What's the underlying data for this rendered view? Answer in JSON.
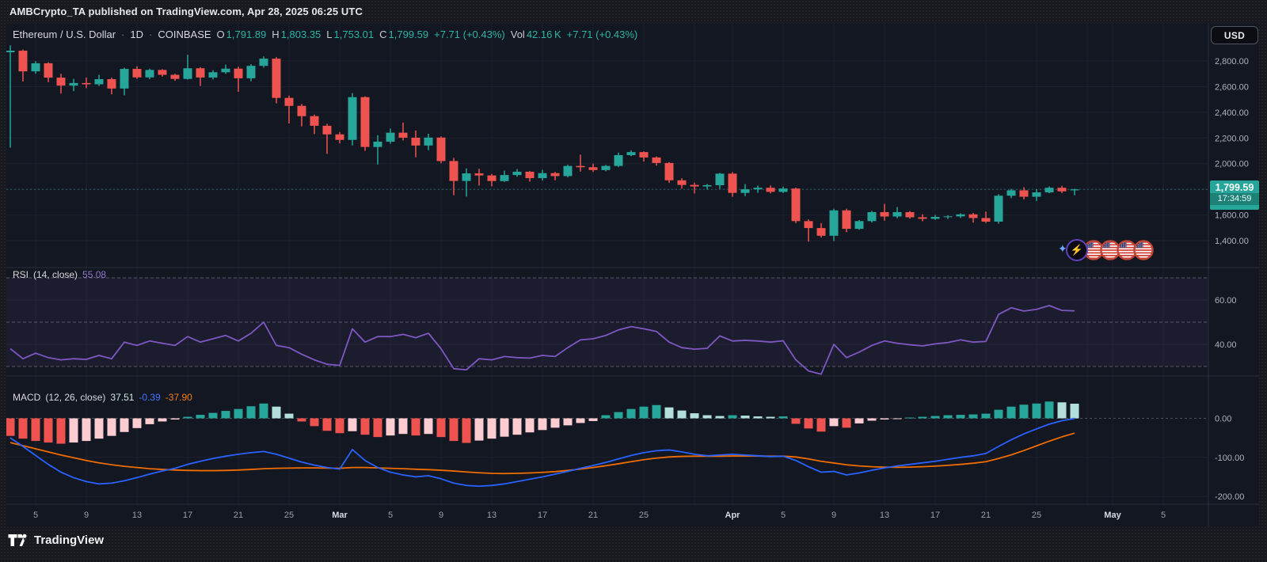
{
  "header": {
    "title": "AMBCrypto_TA published on TradingView.com, Apr 28, 2025 06:25 UTC"
  },
  "legend": {
    "symbol": "Ethereum / U.S. Dollar",
    "separator": "·",
    "timeframe": "1D",
    "exchange": "COINBASE",
    "o_label": "O",
    "o": "1,791.89",
    "h_label": "H",
    "h": "1,803.35",
    "l_label": "L",
    "l": "1,753.01",
    "c_label": "C",
    "c": "1,799.59",
    "change": "+7.71 (+0.43%)",
    "vol_label": "Vol",
    "vol": "42.16 K",
    "vol_change": "+7.71 (+0.43%)"
  },
  "currency_button": {
    "label": "USD"
  },
  "price_badge": {
    "price": "1,799.59",
    "countdown": "17:34:59"
  },
  "rsi_legend": {
    "name": "RSI",
    "params": "(14, close)",
    "value": "55.08"
  },
  "macd_legend": {
    "name": "MACD",
    "params": "(12, 26, close)",
    "hist_value": "37.51",
    "macd_value": "-0.39",
    "signal_value": "-37.90"
  },
  "footer": {
    "brand": "TradingView"
  },
  "stickers": {
    "sparkle": "✦",
    "lightning": "⚡",
    "flag_count": 4
  },
  "colors": {
    "up": "#26a69a",
    "down": "#ef5350",
    "hist_up": "#26a69a",
    "hist_up_fade": "#b2dfdb",
    "hist_down": "#ef5350",
    "hist_down_fade": "#fbcdd2",
    "rsi_line": "#7e57c2",
    "rsi_band_fill": "rgba(126,87,194,0.08)",
    "macd_line": "#2962ff",
    "signal_line": "#ef6c00",
    "badge_bg": "#26a69a",
    "grid": "#1e2230",
    "pane_border": "#2a2e39",
    "axis_text": "#aeb1bb",
    "time_text": "#9b9fa9",
    "month_text": "#d6d9e0",
    "dashed_level": "#787b86"
  },
  "chart_data": {
    "type": "candlestick+rsi+macd",
    "title": "Ethereum / U.S. Dollar · 1D · COINBASE",
    "ohlc_readout": {
      "open": 1791.89,
      "high": 1803.35,
      "low": 1753.01,
      "close": 1799.59,
      "change": 7.71,
      "change_pct": 0.43,
      "volume": "42.16 K"
    },
    "last_price": 1799.59,
    "price_axis": {
      "labels": [
        [
          2800,
          "2,800.00"
        ],
        [
          2600,
          "2,600.00"
        ],
        [
          2400,
          "2,400.00"
        ],
        [
          2200,
          "2,200.00"
        ],
        [
          2000,
          "2,000.00"
        ],
        [
          1600,
          "1,600.00"
        ],
        [
          1400,
          "1,400.00"
        ]
      ],
      "min_shown": 1400,
      "max_shown": 2800
    },
    "time_ticks": [
      [
        2,
        "5"
      ],
      [
        6,
        "9"
      ],
      [
        10,
        "13"
      ],
      [
        14,
        "17"
      ],
      [
        18,
        "21"
      ],
      [
        22,
        "25"
      ],
      [
        26,
        "Mar"
      ],
      [
        30,
        "5"
      ],
      [
        34,
        "9"
      ],
      [
        38,
        "13"
      ],
      [
        42,
        "17"
      ],
      [
        46,
        "21"
      ],
      [
        50,
        "25"
      ],
      [
        54,
        ""
      ],
      [
        57,
        "Apr"
      ],
      [
        61,
        "5"
      ],
      [
        65,
        "9"
      ],
      [
        69,
        "13"
      ],
      [
        73,
        "17"
      ],
      [
        77,
        "21"
      ],
      [
        81,
        "25"
      ],
      [
        85,
        ""
      ],
      [
        87,
        "May"
      ],
      [
        91,
        "5"
      ]
    ],
    "candles": [
      [
        2868,
        2921,
        2125,
        2880
      ],
      [
        2880,
        2890,
        2640,
        2719
      ],
      [
        2719,
        2798,
        2700,
        2782
      ],
      [
        2782,
        2790,
        2635,
        2670
      ],
      [
        2670,
        2700,
        2546,
        2608
      ],
      [
        2608,
        2660,
        2565,
        2628
      ],
      [
        2628,
        2670,
        2588,
        2618
      ],
      [
        2618,
        2692,
        2605,
        2658
      ],
      [
        2658,
        2670,
        2540,
        2585
      ],
      [
        2585,
        2748,
        2532,
        2738
      ],
      [
        2738,
        2758,
        2660,
        2672
      ],
      [
        2672,
        2740,
        2658,
        2730
      ],
      [
        2730,
        2736,
        2678,
        2692
      ],
      [
        2692,
        2700,
        2645,
        2660
      ],
      [
        2660,
        2848,
        2655,
        2743
      ],
      [
        2743,
        2752,
        2605,
        2671
      ],
      [
        2671,
        2728,
        2656,
        2712
      ],
      [
        2712,
        2772,
        2700,
        2740
      ],
      [
        2740,
        2756,
        2560,
        2665
      ],
      [
        2665,
        2775,
        2642,
        2762
      ],
      [
        2762,
        2835,
        2748,
        2818
      ],
      [
        2818,
        2830,
        2470,
        2512
      ],
      [
        2512,
        2530,
        2313,
        2450
      ],
      [
        2450,
        2465,
        2290,
        2370
      ],
      [
        2370,
        2382,
        2230,
        2295
      ],
      [
        2295,
        2310,
        2076,
        2228
      ],
      [
        2228,
        2246,
        2158,
        2185
      ],
      [
        2185,
        2550,
        2142,
        2518
      ],
      [
        2518,
        2524,
        2100,
        2130
      ],
      [
        2130,
        2222,
        1993,
        2171
      ],
      [
        2171,
        2273,
        2155,
        2241
      ],
      [
        2241,
        2320,
        2180,
        2202
      ],
      [
        2202,
        2258,
        2050,
        2141
      ],
      [
        2141,
        2233,
        2105,
        2203
      ],
      [
        2203,
        2212,
        2003,
        2020
      ],
      [
        2020,
        2045,
        1754,
        1865
      ],
      [
        1865,
        1963,
        1744,
        1924
      ],
      [
        1924,
        1960,
        1829,
        1908
      ],
      [
        1908,
        1920,
        1823,
        1864
      ],
      [
        1864,
        1945,
        1858,
        1911
      ],
      [
        1911,
        1958,
        1898,
        1937
      ],
      [
        1937,
        1942,
        1860,
        1887
      ],
      [
        1887,
        1952,
        1868,
        1926
      ],
      [
        1926,
        1936,
        1870,
        1903
      ],
      [
        1903,
        1992,
        1893,
        1982
      ],
      [
        1982,
        2070,
        1938,
        1972
      ],
      [
        1972,
        2000,
        1935,
        1950
      ],
      [
        1950,
        1990,
        1940,
        1982
      ],
      [
        1982,
        2086,
        1974,
        2066
      ],
      [
        2066,
        2104,
        2058,
        2090
      ],
      [
        2090,
        2096,
        2016,
        2048
      ],
      [
        2048,
        2056,
        1984,
        2005
      ],
      [
        2005,
        2012,
        1850,
        1870
      ],
      [
        1870,
        1886,
        1806,
        1834
      ],
      [
        1834,
        1852,
        1768,
        1822
      ],
      [
        1822,
        1841,
        1798,
        1832
      ],
      [
        1832,
        1928,
        1804,
        1922
      ],
      [
        1922,
        1934,
        1742,
        1772
      ],
      [
        1772,
        1840,
        1746,
        1800
      ],
      [
        1800,
        1829,
        1772,
        1812
      ],
      [
        1812,
        1830,
        1768,
        1780
      ],
      [
        1780,
        1821,
        1771,
        1806
      ],
      [
        1806,
        1812,
        1536,
        1552
      ],
      [
        1552,
        1566,
        1392,
        1498
      ],
      [
        1498,
        1536,
        1424,
        1438
      ],
      [
        1438,
        1648,
        1398,
        1636
      ],
      [
        1636,
        1649,
        1466,
        1492
      ],
      [
        1492,
        1560,
        1484,
        1552
      ],
      [
        1552,
        1632,
        1541,
        1622
      ],
      [
        1622,
        1686,
        1556,
        1588
      ],
      [
        1588,
        1662,
        1574,
        1622
      ],
      [
        1622,
        1631,
        1571,
        1582
      ],
      [
        1582,
        1606,
        1551,
        1570
      ],
      [
        1570,
        1599,
        1561,
        1585
      ],
      [
        1585,
        1597,
        1569,
        1589
      ],
      [
        1589,
        1613,
        1577,
        1605
      ],
      [
        1605,
        1616,
        1540,
        1576
      ],
      [
        1576,
        1626,
        1537,
        1548
      ],
      [
        1548,
        1762,
        1532,
        1750
      ],
      [
        1750,
        1803,
        1731,
        1792
      ],
      [
        1792,
        1816,
        1721,
        1742
      ],
      [
        1742,
        1801,
        1709,
        1776
      ],
      [
        1776,
        1823,
        1769,
        1812
      ],
      [
        1812,
        1827,
        1771,
        1784
      ],
      [
        1791.89,
        1803.35,
        1753.01,
        1799.59
      ]
    ],
    "rsi": {
      "upper_band": 70,
      "middle_band": 50,
      "lower_band": 30,
      "last": 55.08,
      "axis_labels": [
        [
          60,
          "60.00"
        ],
        [
          40,
          "40.00"
        ]
      ],
      "values": [
        38,
        33.5,
        36,
        34,
        33,
        33.5,
        33.2,
        35,
        33.5,
        41,
        39.5,
        41.5,
        40.5,
        39.5,
        43.5,
        41,
        42.5,
        44,
        41.5,
        45,
        50,
        39.5,
        38.5,
        35.5,
        33,
        31,
        30.5,
        47,
        41,
        43.5,
        43.5,
        44.5,
        43,
        45,
        38,
        29,
        28.5,
        33.5,
        33,
        34.5,
        34,
        33.8,
        35,
        34.5,
        38.5,
        42,
        42.5,
        44,
        46.5,
        48,
        47,
        45.8,
        41,
        38.5,
        37.8,
        38.2,
        43.8,
        41.5,
        41.8,
        41.5,
        41,
        41.6,
        33,
        28,
        26.5,
        40,
        34,
        36.5,
        39.5,
        41.5,
        40.5,
        39.8,
        39.3,
        40.2,
        40.8,
        42,
        41,
        41.3,
        53.5,
        56.5,
        55,
        55.8,
        57.5,
        55.3,
        55.08
      ]
    },
    "macd": {
      "axis_labels": [
        [
          0,
          "0.00"
        ],
        [
          -100,
          "-100.00"
        ],
        [
          -200,
          "-200.00"
        ]
      ],
      "last_hist": 37.51,
      "last_macd": -0.39,
      "last_signal": -37.9,
      "hist": [
        -45,
        -52,
        -58,
        -62,
        -65,
        -62,
        -58,
        -52,
        -45,
        -35,
        -25,
        -15,
        -8,
        -3,
        4,
        9,
        14,
        19,
        24,
        31,
        38,
        30,
        12,
        -8,
        -20,
        -32,
        -38,
        -33,
        -42,
        -48,
        -44,
        -40,
        -44,
        -40,
        -48,
        -58,
        -63,
        -57,
        -52,
        -47,
        -42,
        -36,
        -30,
        -24,
        -18,
        -12,
        -7,
        8,
        16,
        24,
        30,
        34,
        28,
        20,
        13,
        8,
        6,
        8,
        7,
        5,
        4,
        5,
        -14,
        -26,
        -34,
        -20,
        -24,
        -13,
        -6,
        -3,
        -1,
        2,
        4,
        6,
        8,
        9,
        10,
        12,
        22,
        30,
        35,
        38,
        43,
        41,
        37.51
      ],
      "macd": [
        -50,
        -72,
        -95,
        -118,
        -138,
        -152,
        -162,
        -168,
        -166,
        -160,
        -152,
        -143,
        -135,
        -128,
        -118,
        -110,
        -103,
        -97,
        -92,
        -88,
        -85,
        -92,
        -102,
        -112,
        -120,
        -126,
        -130,
        -80,
        -108,
        -126,
        -138,
        -145,
        -150,
        -147,
        -155,
        -166,
        -172,
        -174,
        -172,
        -168,
        -162,
        -156,
        -150,
        -143,
        -136,
        -128,
        -121,
        -113,
        -104,
        -95,
        -88,
        -83,
        -81,
        -86,
        -92,
        -96,
        -94,
        -92,
        -94,
        -96,
        -98,
        -97,
        -108,
        -124,
        -138,
        -136,
        -145,
        -140,
        -133,
        -127,
        -122,
        -118,
        -114,
        -110,
        -105,
        -100,
        -96,
        -90,
        -72,
        -55,
        -40,
        -27,
        -15,
        -6,
        -0.39
      ],
      "signal": [
        -62,
        -70,
        -78,
        -86,
        -94,
        -101,
        -108,
        -114,
        -119,
        -123,
        -126,
        -129,
        -131,
        -132.5,
        -133.5,
        -134,
        -134,
        -133.5,
        -132.5,
        -131,
        -129,
        -128,
        -127.5,
        -127,
        -127,
        -127.5,
        -128,
        -126,
        -126,
        -127,
        -128,
        -129,
        -130.5,
        -131.5,
        -133,
        -135,
        -137.5,
        -139.5,
        -141,
        -141.5,
        -141,
        -140,
        -138.5,
        -136.5,
        -133.5,
        -130,
        -126,
        -121.5,
        -116.5,
        -111,
        -106,
        -102,
        -99,
        -97.5,
        -97,
        -97,
        -97,
        -96.5,
        -96.5,
        -96.5,
        -97,
        -97,
        -99,
        -104,
        -110,
        -114.5,
        -119,
        -122,
        -124,
        -125,
        -125.5,
        -125,
        -124,
        -122.5,
        -120.5,
        -118,
        -115,
        -111,
        -103,
        -93.5,
        -82.5,
        -70.5,
        -58.5,
        -47.5,
        -37.9
      ]
    }
  }
}
